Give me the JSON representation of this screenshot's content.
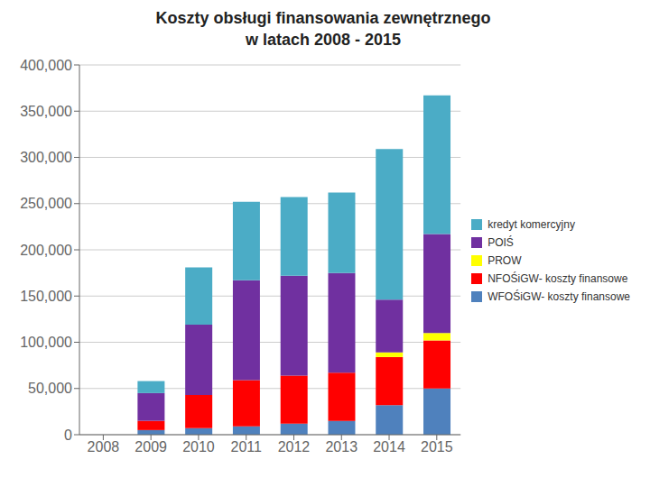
{
  "chart_data": {
    "type": "bar",
    "stacked": true,
    "title": "Koszty obsługi finansowania zewnętrznego\nw latach 2008 - 2015",
    "categories": [
      "2008",
      "2009",
      "2010",
      "2011",
      "2012",
      "2013",
      "2014",
      "2015"
    ],
    "series": [
      {
        "name": "WFOŚiGW- koszty finansowe",
        "color": "#4F81BD",
        "values": [
          0,
          5000,
          7000,
          9000,
          12000,
          15000,
          32000,
          50000
        ]
      },
      {
        "name": "NFOŚiGW- koszty finansowe",
        "color": "#FF0000",
        "values": [
          0,
          10000,
          36000,
          50000,
          52000,
          52000,
          52000,
          52000
        ]
      },
      {
        "name": "PROW",
        "color": "#FFFF00",
        "values": [
          0,
          0,
          0,
          0,
          0,
          0,
          5000,
          8000
        ]
      },
      {
        "name": "POIŚ",
        "color": "#7030A0",
        "values": [
          0,
          30000,
          76000,
          108000,
          108000,
          108000,
          57000,
          107000
        ]
      },
      {
        "name": "kredyt komercyjny",
        "color": "#4BACC6",
        "values": [
          0,
          13000,
          62000,
          85000,
          85000,
          87000,
          163000,
          150000
        ]
      }
    ],
    "ylim": [
      0,
      400000
    ],
    "yticks": [
      0,
      {
        "value": 50000,
        "label": "50,000"
      },
      {
        "value": 100000,
        "label": "100,000"
      },
      {
        "value": 150000,
        "label": "150,000"
      },
      {
        "value": 200000,
        "label": "200,000"
      },
      {
        "value": 250000,
        "label": "250,000"
      },
      {
        "value": 300000,
        "label": "300,000"
      },
      {
        "value": 350000,
        "label": "350,000"
      },
      {
        "value": 400000,
        "label": "400,000"
      }
    ],
    "grid": true,
    "legend": "right"
  }
}
